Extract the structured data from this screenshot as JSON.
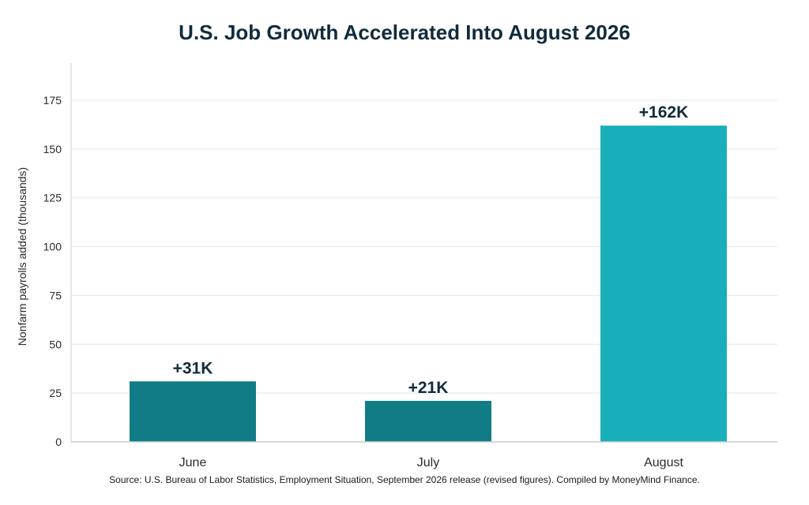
{
  "title": "U.S. Job Growth Accelerated Into August 2026",
  "source": "Source: U.S. Bureau of Labor Statistics, Employment Situation, September 2026 release (revised figures). Compiled by MoneyMind Finance.",
  "colors": {
    "bar_primary": "#117c86",
    "bar_highlight": "#18afba",
    "grid": "#dce8ec",
    "axis": "#c7cfd4",
    "title": "#112b3c"
  },
  "chart_data": {
    "type": "bar",
    "title": "U.S. Job Growth Accelerated Into August 2026",
    "xlabel": "",
    "ylabel": "Nonfarm payrolls added (thousands)",
    "categories": [
      "June",
      "July",
      "August"
    ],
    "values": [
      31,
      21,
      162
    ],
    "data_labels": [
      "+31K",
      "+21K",
      "+162K"
    ],
    "highlight_index": 2,
    "ylim": [
      0,
      194
    ],
    "yticks": [
      0,
      25,
      50,
      75,
      100,
      125,
      150,
      175
    ],
    "grid": true,
    "legend": "none"
  }
}
